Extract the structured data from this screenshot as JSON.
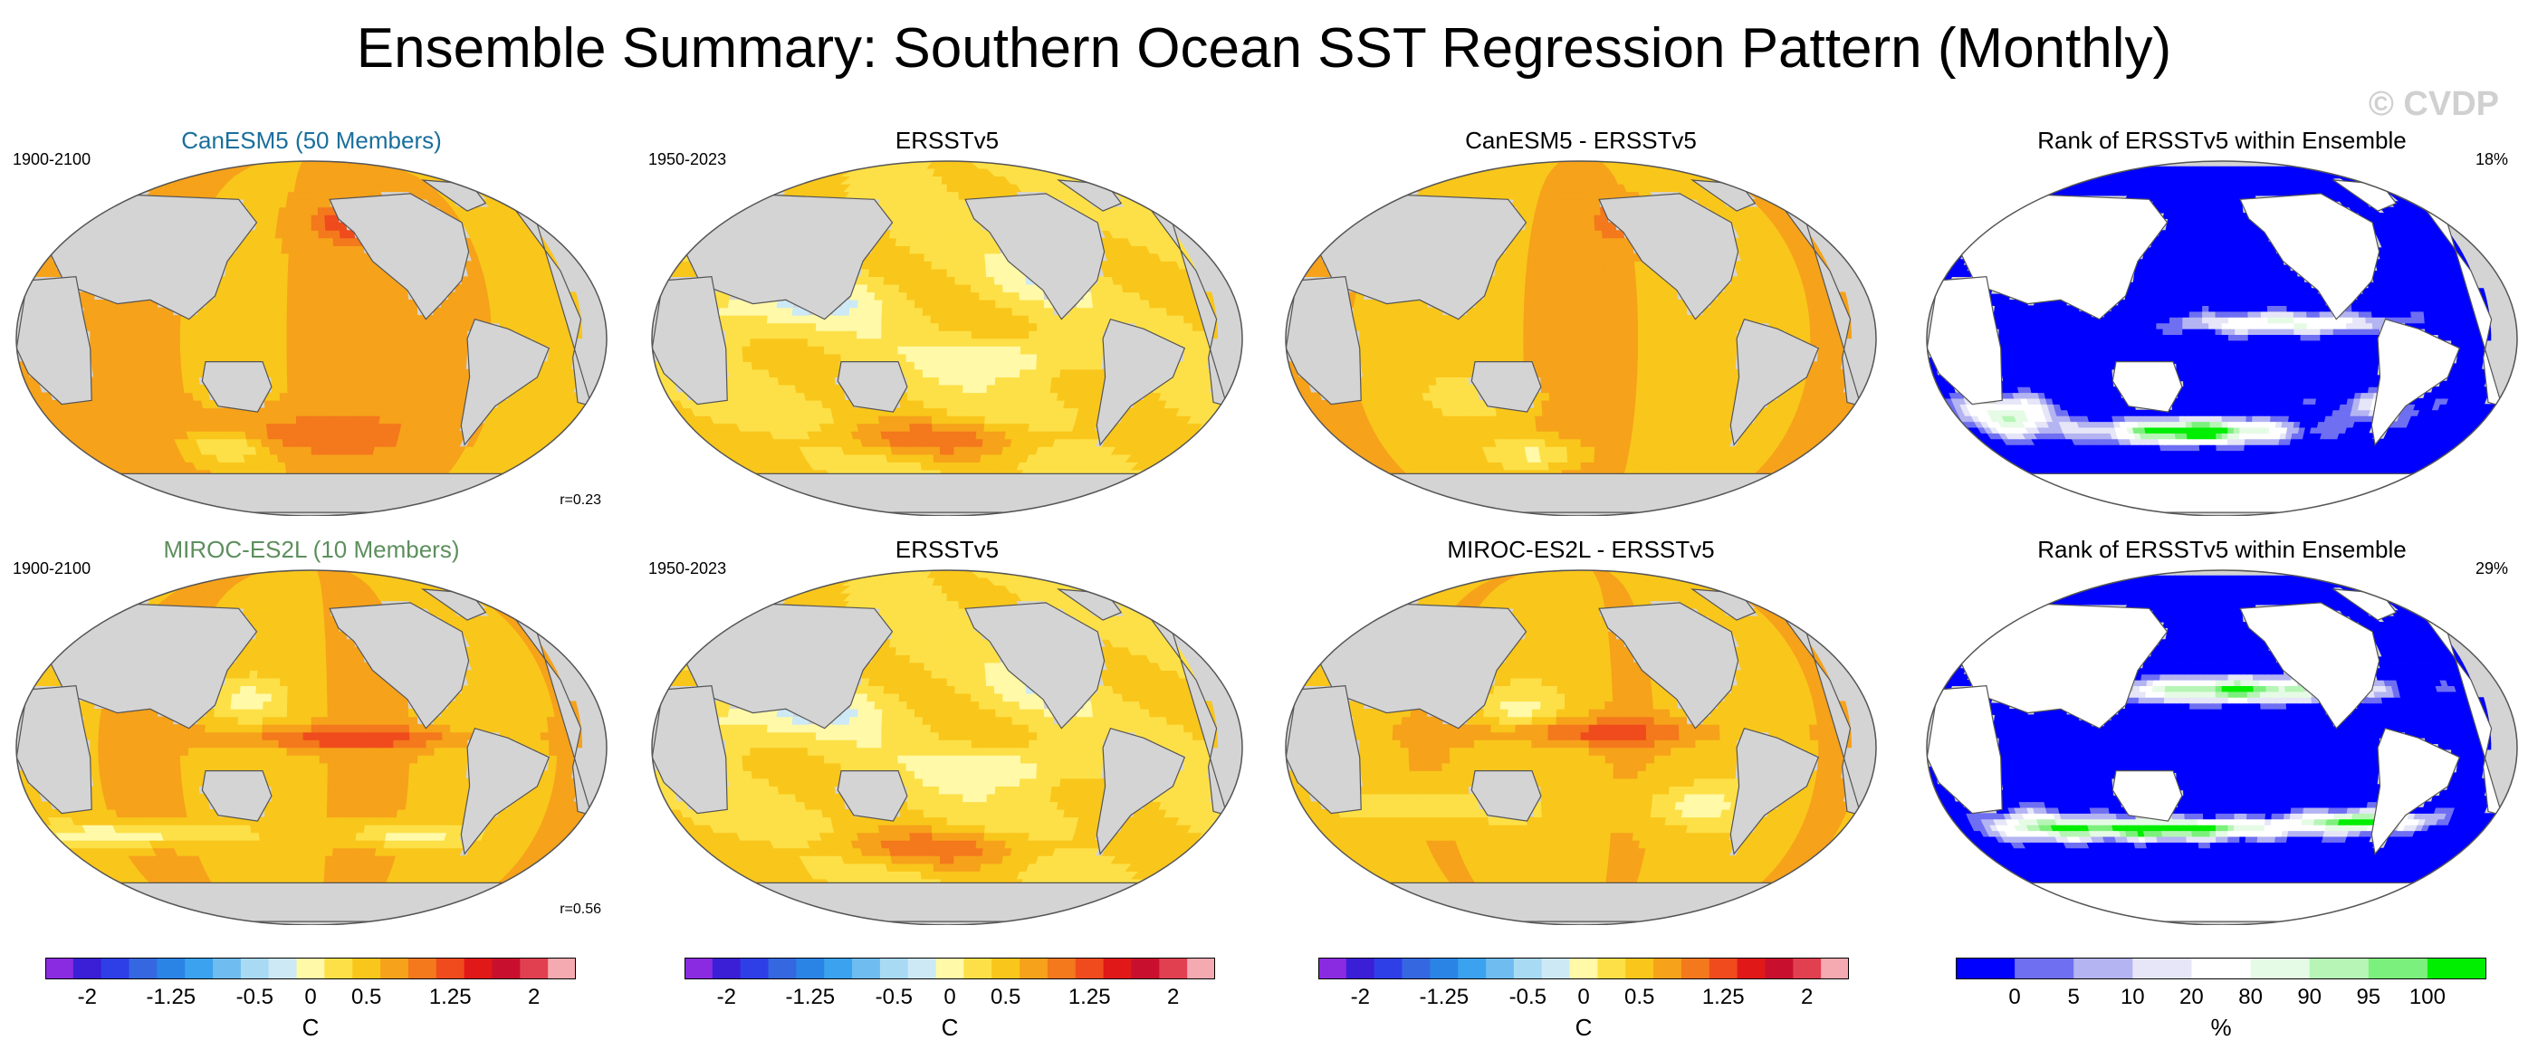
{
  "title": "Ensemble Summary: Southern Ocean SST Regression Pattern (Monthly)",
  "watermark": "© CVDP",
  "colors": {
    "land": "#d4d4d4",
    "coast": "#555555",
    "model1_title": "#1a6f9c",
    "model2_title": "#5d8f5d"
  },
  "chart_data": [
    {
      "type": "heatmap",
      "row": 1,
      "col": 1,
      "title": "CanESM5 (50 Members)",
      "left_label": "1900-2100",
      "right_label": "",
      "corr": "r=0.23",
      "palette": "sst",
      "pattern": "model_can"
    },
    {
      "type": "heatmap",
      "row": 1,
      "col": 2,
      "title": "ERSSTv5",
      "left_label": "1950-2023",
      "right_label": "",
      "corr": "",
      "palette": "sst",
      "pattern": "obs"
    },
    {
      "type": "heatmap",
      "row": 1,
      "col": 3,
      "title": "CanESM5 - ERSSTv5",
      "left_label": "",
      "right_label": "",
      "corr": "",
      "palette": "sst",
      "pattern": "diff_can"
    },
    {
      "type": "heatmap",
      "row": 1,
      "col": 4,
      "title": "Rank of ERSSTv5 within Ensemble",
      "left_label": "",
      "right_label": "18%",
      "corr": "",
      "palette": "rank",
      "pattern": "rank_can"
    },
    {
      "type": "heatmap",
      "row": 2,
      "col": 1,
      "title": "MIROC-ES2L (10 Members)",
      "left_label": "1900-2100",
      "right_label": "",
      "corr": "r=0.56",
      "palette": "sst",
      "pattern": "model_miroc"
    },
    {
      "type": "heatmap",
      "row": 2,
      "col": 2,
      "title": "ERSSTv5",
      "left_label": "1950-2023",
      "right_label": "",
      "corr": "",
      "palette": "sst",
      "pattern": "obs"
    },
    {
      "type": "heatmap",
      "row": 2,
      "col": 3,
      "title": "MIROC-ES2L - ERSSTv5",
      "left_label": "",
      "right_label": "",
      "corr": "",
      "palette": "sst",
      "pattern": "diff_miroc"
    },
    {
      "type": "heatmap",
      "row": 2,
      "col": 4,
      "title": "Rank of ERSSTv5 within Ensemble",
      "left_label": "",
      "right_label": "29%",
      "corr": "",
      "palette": "rank",
      "pattern": "rank_miroc"
    }
  ],
  "colorbars": [
    {
      "unit": "C",
      "palette": "sst",
      "ticks": [
        "-2",
        "-1.25",
        "-0.5",
        "0",
        "0.5",
        "1.25",
        "2"
      ]
    },
    {
      "unit": "C",
      "palette": "sst",
      "ticks": [
        "-2",
        "-1.25",
        "-0.5",
        "0",
        "0.5",
        "1.25",
        "2"
      ]
    },
    {
      "unit": "C",
      "palette": "sst",
      "ticks": [
        "-2",
        "-1.25",
        "-0.5",
        "0",
        "0.5",
        "1.25",
        "2"
      ]
    },
    {
      "unit": "%",
      "palette": "rank",
      "ticks": [
        "0",
        "5",
        "10",
        "20",
        "80",
        "90",
        "95",
        "100"
      ]
    }
  ],
  "palettes": {
    "sst": [
      "#8a2be2",
      "#3a1fd6",
      "#2f3fe8",
      "#3568e0",
      "#2a84e6",
      "#3aa2ee",
      "#6ebcf0",
      "#a8daf3",
      "#cde9f5",
      "#fff9a8",
      "#fde047",
      "#f9c61b",
      "#f6a21a",
      "#f4781c",
      "#ef4b1c",
      "#e01818",
      "#c8102e",
      "#e04050",
      "#f5a9b0"
    ],
    "rank": [
      "#0000ff",
      "#6f6ff2",
      "#b4b4f2",
      "#e6e6f8",
      "#ffffff",
      "#e6fbe6",
      "#b6f5b6",
      "#7cf07c",
      "#00ee00"
    ]
  }
}
